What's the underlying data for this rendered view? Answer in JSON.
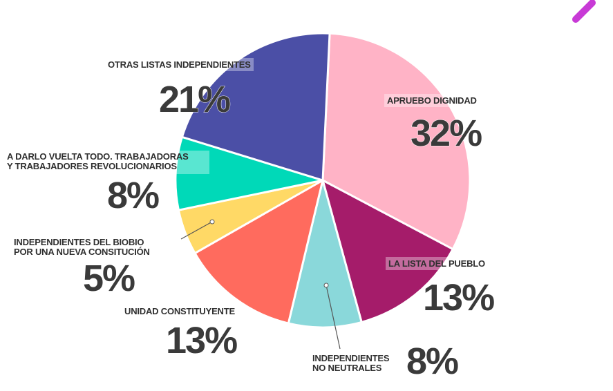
{
  "chart_data": {
    "type": "pie",
    "title": "",
    "start_angle_deg": 2.7,
    "direction": "clockwise",
    "center": [
      467,
      261
    ],
    "radius": 213,
    "slices": [
      {
        "label": "APRUEBO DIGNIDAD",
        "value": 32,
        "pct_text": "32%",
        "color": "#FFB3C6"
      },
      {
        "label": "LA LISTA DEL PUEBLO",
        "value": 13,
        "pct_text": "13%",
        "color": "#A51C6A"
      },
      {
        "label": "INDEPENDIENTES NO NEUTRALES",
        "value": 8,
        "pct_text": "8%",
        "color": "#8AD8DA"
      },
      {
        "label": "UNIDAD CONSTITUYENTE",
        "value": 13,
        "pct_text": "13%",
        "color": "#FF6B5E"
      },
      {
        "label": "INDEPENDIENTES DEL BIOBIO POR UNA NUEVA CONSITUCIÓN",
        "value": 5,
        "pct_text": "5%",
        "color": "#FFD966"
      },
      {
        "label": "A DARLO VUELTA TODO. TRABAJADORAS Y TRABAJADORES REVOLUCIONARIOS",
        "value": 8,
        "pct_text": "8%",
        "color": "#00D9B8"
      },
      {
        "label": "OTRAS LISTAS INDEPENDIENTES",
        "value": 21,
        "pct_text": "21%",
        "color": "#4B4FA6"
      }
    ]
  },
  "labels": {
    "otras": {
      "line1": "OTRAS LISTAS INDEPENDIENTES",
      "pct": "21%"
    },
    "apruebo": {
      "line1": "APRUEBO DIGNIDAD",
      "pct": "32%"
    },
    "darlo": {
      "line1": "A DARLO VUELTA TODO. TRABAJADORAS",
      "line2": "Y TRABAJADORES REVOLUCIONARIOS",
      "pct": "8%"
    },
    "biobio": {
      "line1": "INDEPENDIENTES DEL BIOBIO",
      "line2": "POR UNA NUEVA CONSITUCIÓN",
      "pct": "5%"
    },
    "lista": {
      "line1": "LA LISTA DEL PUEBLO",
      "pct": "13%"
    },
    "unidad": {
      "line1": "UNIDAD CONSTITUYENTE",
      "pct": "13%"
    },
    "noneutrales": {
      "line1": "INDEPENDIENTES",
      "line2": "NO NEUTRALES",
      "pct": "8%"
    }
  },
  "decor": {
    "corner_mark_color": "#C83AD6"
  }
}
